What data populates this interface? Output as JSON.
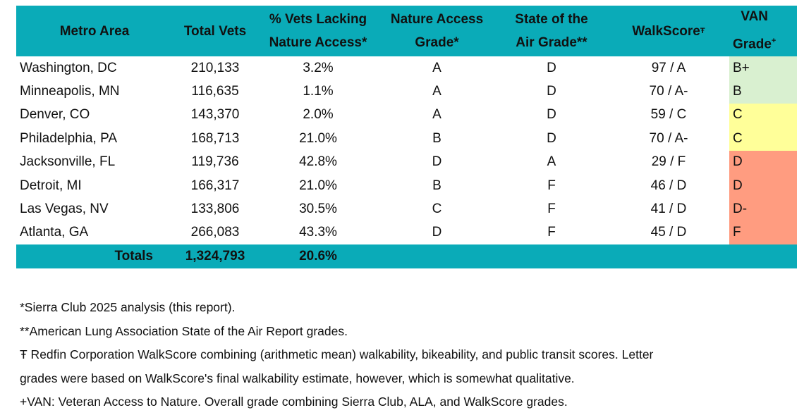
{
  "headers": {
    "metro": "Metro Area",
    "total": "Total Vets",
    "pct_1": "% Vets Lacking",
    "pct_2": "Nature Access*",
    "nag_1": "Nature Access",
    "nag_2": "Grade*",
    "soa_1": "State of the",
    "soa_2": "Air Grade**",
    "walk": "WalkScore",
    "walk_sup": "Ŧ",
    "van_1": "VAN",
    "van_2": "Grade",
    "van_sup": "+"
  },
  "rows": [
    {
      "metro": "Washington, DC",
      "total": "210,133",
      "pct": "3.2%",
      "nag": "A",
      "soa": "D",
      "walk": "97 / A",
      "van": "B+",
      "van_color": "#d9f0d0"
    },
    {
      "metro": "Minneapolis, MN",
      "total": "116,635",
      "pct": "1.1%",
      "nag": "A",
      "soa": "D",
      "walk": "70 / A-",
      "van": "B",
      "van_color": "#d9f0d0"
    },
    {
      "metro": "Denver, CO",
      "total": "143,370",
      "pct": "2.0%",
      "nag": "A",
      "soa": "D",
      "walk": "59 / C",
      "van": "C",
      "van_color": "#ffff99"
    },
    {
      "metro": "Philadelphia, PA",
      "total": "168,713",
      "pct": "21.0%",
      "nag": "B",
      "soa": "D",
      "walk": "70 / A-",
      "van": "C",
      "van_color": "#ffff99"
    },
    {
      "metro": "Jacksonville, FL",
      "total": "119,736",
      "pct": "42.8%",
      "nag": "D",
      "soa": "A",
      "walk": "29 / F",
      "van": "D",
      "van_color": "#ff9c80"
    },
    {
      "metro": "Detroit, MI",
      "total": "166,317",
      "pct": "21.0%",
      "nag": "B",
      "soa": "F",
      "walk": "46 / D",
      "van": "D",
      "van_color": "#ff9c80"
    },
    {
      "metro": "Las Vegas, NV",
      "total": "133,806",
      "pct": "30.5%",
      "nag": "C",
      "soa": "F",
      "walk": "41 / D",
      "van": "D-",
      "van_color": "#ff9c80"
    },
    {
      "metro": "Atlanta, GA",
      "total": "266,083",
      "pct": "43.3%",
      "nag": "D",
      "soa": "F",
      "walk": "45 / D",
      "van": "F",
      "van_color": "#ff9c80"
    }
  ],
  "totals": {
    "label": "Totals",
    "total": "1,324,793",
    "pct": "20.6%"
  },
  "notes": [
    "*Sierra Club 2025 analysis (this report).",
    "**American Lung Association State of the Air Report grades.",
    "Ŧ Redfin Corporation WalkScore combining (arithmetic mean) walkability, bikeability, and public transit scores.  Letter",
    "grades were based on WalkScore's final walkability estimate, however, which is somewhat qualitative.",
    "+VAN: Veteran Access to Nature. Overall grade combining Sierra Club, ALA, and WalkScore grades."
  ]
}
